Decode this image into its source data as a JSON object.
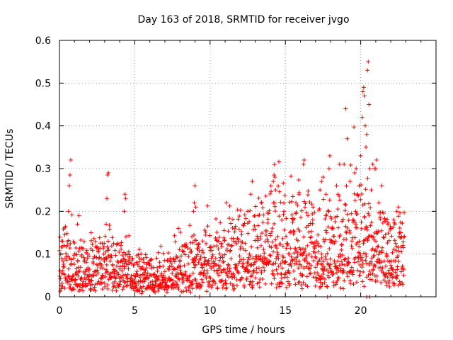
{
  "chart_data": {
    "type": "scatter",
    "title": "Day 163 of 2018, SRMTID for receiver jvgo",
    "xlabel": "GPS time / hours",
    "ylabel": "SRMTID / TECUs",
    "xlim": [
      0,
      25
    ],
    "ylim": [
      0,
      0.6
    ],
    "x_ticks": [
      0,
      5,
      10,
      15,
      20
    ],
    "y_ticks": [
      0,
      0.1,
      0.2,
      0.3,
      0.4,
      0.5,
      0.6
    ],
    "x_tick_labels": [
      "0",
      "5",
      "10",
      "15",
      "20"
    ],
    "y_tick_labels": [
      "0",
      "0.1",
      "0.2",
      "0.3",
      "0.4",
      "0.5",
      "0.6"
    ],
    "grid": true,
    "marker": "plus",
    "series": [
      {
        "name": "SRMTID",
        "color": "#ff0000",
        "x_start": 0.0,
        "x_end": 22.9,
        "level_profile": [
          [
            0,
            0.075
          ],
          [
            1,
            0.06
          ],
          [
            2,
            0.055
          ],
          [
            3,
            0.07
          ],
          [
            4,
            0.07
          ],
          [
            5,
            0.05
          ],
          [
            6,
            0.04
          ],
          [
            7,
            0.045
          ],
          [
            8,
            0.06
          ],
          [
            9,
            0.07
          ],
          [
            10,
            0.075
          ],
          [
            11,
            0.08
          ],
          [
            12,
            0.09
          ],
          [
            13,
            0.1
          ],
          [
            14,
            0.11
          ],
          [
            15,
            0.12
          ],
          [
            16,
            0.12
          ],
          [
            17,
            0.11
          ],
          [
            18,
            0.1
          ],
          [
            19,
            0.11
          ],
          [
            20,
            0.13
          ],
          [
            21,
            0.1
          ],
          [
            22,
            0.08
          ],
          [
            22.9,
            0.09
          ]
        ],
        "notable_points": [
          [
            0.2,
            0.13
          ],
          [
            0.3,
            0.12
          ],
          [
            0.6,
            0.2
          ],
          [
            0.65,
            0.26
          ],
          [
            0.7,
            0.285
          ],
          [
            0.75,
            0.32
          ],
          [
            1.2,
            0.17
          ],
          [
            1.3,
            0.19
          ],
          [
            2.1,
            0.15
          ],
          [
            3.1,
            0.17
          ],
          [
            3.15,
            0.23
          ],
          [
            3.2,
            0.285
          ],
          [
            3.25,
            0.29
          ],
          [
            4.3,
            0.2
          ],
          [
            4.35,
            0.24
          ],
          [
            4.4,
            0.23
          ],
          [
            7.9,
            0.16
          ],
          [
            8.9,
            0.2
          ],
          [
            8.95,
            0.22
          ],
          [
            9.0,
            0.26
          ],
          [
            9.05,
            0.21
          ],
          [
            12.5,
            0.2
          ],
          [
            12.7,
            0.24
          ],
          [
            12.8,
            0.27
          ],
          [
            13.2,
            0.19
          ],
          [
            13.4,
            0.22
          ],
          [
            14.2,
            0.27
          ],
          [
            14.25,
            0.285
          ],
          [
            14.3,
            0.28
          ],
          [
            14.35,
            0.25
          ],
          [
            14.9,
            0.2
          ],
          [
            15.7,
            0.22
          ],
          [
            15.9,
            0.24
          ],
          [
            16.2,
            0.31
          ],
          [
            16.25,
            0.32
          ],
          [
            16.5,
            0.19
          ],
          [
            17.3,
            0.25
          ],
          [
            17.4,
            0.27
          ],
          [
            17.5,
            0.28
          ],
          [
            17.7,
            0.24
          ],
          [
            17.9,
            0.3
          ],
          [
            17.95,
            0.33
          ],
          [
            18.4,
            0.26
          ],
          [
            18.5,
            0.24
          ],
          [
            18.6,
            0.31
          ],
          [
            18.9,
            0.31
          ],
          [
            19.0,
            0.44
          ],
          [
            19.1,
            0.37
          ],
          [
            19.3,
            0.27
          ],
          [
            19.6,
            0.29
          ],
          [
            19.7,
            0.3
          ],
          [
            19.8,
            0.24
          ],
          [
            19.9,
            0.26
          ],
          [
            20.0,
            0.33
          ],
          [
            20.1,
            0.42
          ],
          [
            20.15,
            0.48
          ],
          [
            20.2,
            0.49
          ],
          [
            20.25,
            0.47
          ],
          [
            20.3,
            0.4
          ],
          [
            20.35,
            0.35
          ],
          [
            20.4,
            0.38
          ],
          [
            20.45,
            0.53
          ],
          [
            20.5,
            0.55
          ],
          [
            20.55,
            0.45
          ],
          [
            20.6,
            0.3
          ],
          [
            20.7,
            0.25
          ],
          [
            20.8,
            0.31
          ],
          [
            20.9,
            0.3
          ],
          [
            21.0,
            0.3
          ],
          [
            21.05,
            0.32
          ],
          [
            21.2,
            0.22
          ],
          [
            21.4,
            0.26
          ],
          [
            21.6,
            0.18
          ],
          [
            21.8,
            0.17
          ],
          [
            22.0,
            0.16
          ],
          [
            22.2,
            0.18
          ],
          [
            22.4,
            0.2
          ],
          [
            22.5,
            0.21
          ],
          [
            22.6,
            0.15
          ],
          [
            22.8,
            0.12
          ],
          [
            20.4,
            0.0
          ],
          [
            20.6,
            0.0
          ],
          [
            17.8,
            0.0
          ],
          [
            9.3,
            0.0
          ]
        ]
      }
    ]
  }
}
